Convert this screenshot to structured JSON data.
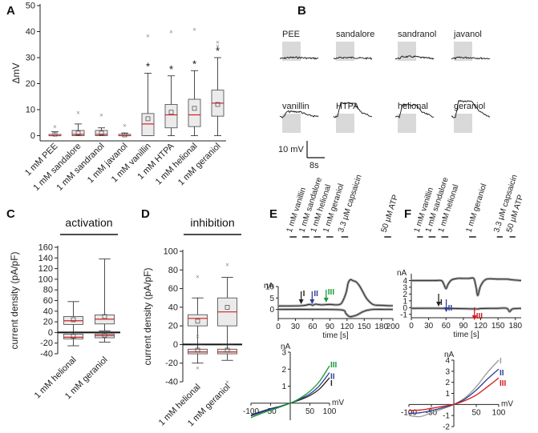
{
  "panel_letters": [
    "A",
    "B",
    "C",
    "D",
    "E",
    "F"
  ],
  "chart_data": [
    {
      "panel": "A",
      "type": "box",
      "ylabel": "ΔmV",
      "ylim": [
        -2,
        50
      ],
      "yticks": [
        0,
        10,
        20,
        30,
        40,
        50
      ],
      "categories": [
        "1 mM PEE",
        "1 mM sandalore",
        "1 mM sandranol",
        "1 mM javanol",
        "1 mM vanillin",
        "1 mM HTPA",
        "1 mM helional",
        "1 mM geraniol"
      ],
      "boxes": [
        {
          "min": 0,
          "q1": 0,
          "median": 0,
          "q3": 0.5,
          "max": 1.5,
          "mean": 0.6,
          "outliers": [
            3.5
          ],
          "sig": ""
        },
        {
          "min": 0,
          "q1": 0,
          "median": 0.5,
          "q3": 2,
          "max": 4.5,
          "mean": 1,
          "outliers": [
            9
          ],
          "sig": ""
        },
        {
          "min": 0,
          "q1": 0,
          "median": 0.5,
          "q3": 2,
          "max": 3,
          "mean": 1,
          "outliers": [
            8
          ],
          "sig": ""
        },
        {
          "min": 0,
          "q1": 0,
          "median": 0,
          "q3": 0.5,
          "max": 1,
          "mean": 0.3,
          "outliers": [
            4
          ],
          "sig": ""
        },
        {
          "min": 0,
          "q1": 0,
          "median": 4.5,
          "q3": 8.5,
          "max": 24,
          "mean": 6.5,
          "outliers": [
            38.5
          ],
          "sig": "*"
        },
        {
          "min": 0,
          "q1": 3,
          "median": 8,
          "q3": 12,
          "max": 23,
          "mean": 9,
          "outliers": [
            40
          ],
          "sig": "*"
        },
        {
          "min": 0,
          "q1": 3.5,
          "median": 8,
          "q3": 14,
          "max": 25,
          "mean": 10.5,
          "outliers": [
            41
          ],
          "sig": "*"
        },
        {
          "min": 0,
          "q1": 7.5,
          "median": 12.5,
          "q3": 17.5,
          "max": 30,
          "mean": 12,
          "outliers": [
            34.5,
            36
          ],
          "sig": "*"
        }
      ]
    },
    {
      "panel": "B",
      "type": "traces",
      "labels": [
        "PEE",
        "sandalore",
        "sandranol",
        "javanol",
        "vanillin",
        "HTPA",
        "helional",
        "geraniol"
      ],
      "response_mV": [
        0.5,
        0.5,
        1,
        0.5,
        3,
        8,
        7,
        9
      ],
      "scalebar_y": "10 mV",
      "scalebar_x": "8s"
    },
    {
      "panel": "C",
      "type": "box",
      "title": "activation",
      "ylabel": "current density (pA/pF)",
      "ylim": [
        -40,
        160
      ],
      "yticks": [
        -40,
        -20,
        0,
        20,
        40,
        60,
        80,
        100,
        120,
        140,
        160
      ],
      "categories": [
        "1 mM helional",
        "1 mM geraniol"
      ],
      "boxes": [
        {
          "min": 0,
          "q1": 15,
          "median": 22,
          "q3": 30,
          "max": 58,
          "mean": 24,
          "outliers": []
        },
        {
          "min": 3,
          "q1": 16,
          "median": 25,
          "q3": 33,
          "max": 138,
          "mean": 30,
          "outliers": []
        }
      ],
      "boxes_negative": [
        {
          "min": -25,
          "q1": -12,
          "median": -9,
          "q3": -3,
          "max": 0,
          "mean": -7
        },
        {
          "min": -18,
          "q1": -10,
          "median": -6,
          "q3": -3,
          "max": 0,
          "mean": -5
        }
      ]
    },
    {
      "panel": "D",
      "type": "box",
      "title": "inhibition",
      "ylabel": "current density (pA/pF)",
      "ylim": [
        -40,
        100
      ],
      "yticks": [
        -40,
        -20,
        0,
        20,
        40,
        60,
        80,
        100
      ],
      "categories": [
        "1 mM helional",
        "1 mM geraniol"
      ],
      "boxes": [
        {
          "min": 0,
          "q1": 20,
          "median": 28,
          "q3": 32,
          "max": 50,
          "mean": 25,
          "outliers": [
            73,
            9
          ]
        },
        {
          "min": 0,
          "q1": 20,
          "median": 35,
          "q3": 50,
          "max": 72,
          "mean": 40,
          "outliers": [
            86
          ]
        }
      ],
      "boxes_negative": [
        {
          "min": -20,
          "q1": -10,
          "median": -8,
          "q3": -5,
          "max": 0,
          "mean": -6,
          "outliers": [
            -25
          ]
        },
        {
          "min": -17,
          "q1": -10,
          "median": -8,
          "q3": -5,
          "max": 0,
          "mean": -6,
          "outliers": [
            -40
          ]
        }
      ]
    },
    {
      "panel": "E",
      "type": "line",
      "ylabel": "nA",
      "xlabel": "time [s]",
      "xlim": [
        0,
        200
      ],
      "ylim": [
        -4,
        10
      ],
      "yticks": [
        0,
        5,
        10
      ],
      "xticks": [
        0,
        30,
        60,
        90,
        120,
        150,
        180,
        200
      ],
      "xtick_labels": [
        "0",
        "30",
        "60",
        "90",
        "120",
        "150",
        "180",
        "200"
      ],
      "stimuli": [
        {
          "label": "1 mM vanillin",
          "start": 20,
          "end": 32
        },
        {
          "label": "1 mM sandalore",
          "start": 42,
          "end": 54
        },
        {
          "label": "1 mM helional",
          "start": 62,
          "end": 74
        },
        {
          "label": "1 mM geraniol",
          "start": 84,
          "end": 96
        },
        {
          "label": "3.3 μM capsaicin",
          "start": 110,
          "end": 122
        },
        {
          "label": "50 μM ATP",
          "start": 185,
          "end": 197
        }
      ],
      "arrows": [
        {
          "label": "I",
          "x": 54,
          "color": "#232323"
        },
        {
          "label": "II",
          "x": 62,
          "color": "#2f3f99"
        },
        {
          "label": "III",
          "x": 92,
          "color": "#1a9a3a"
        }
      ],
      "upper_trace": {
        "x": [
          0,
          40,
          55,
          60,
          65,
          75,
          90,
          100,
          110,
          118,
          122,
          126,
          130,
          136,
          142,
          148,
          155,
          165,
          175,
          185,
          195,
          200
        ],
        "y": [
          1.5,
          1.6,
          2.2,
          1.8,
          2.3,
          2,
          2.2,
          2,
          2.6,
          7,
          11.5,
          13,
          12.6,
          12,
          10.2,
          7.5,
          4.5,
          2.2,
          1.8,
          1.7,
          1.6,
          1.6
        ]
      },
      "lower_trace": {
        "x": [
          0,
          60,
          110,
          118,
          122,
          126,
          130,
          136,
          142,
          148,
          155,
          165,
          185,
          200
        ],
        "y": [
          0,
          0,
          -0.2,
          -1.8,
          -2.8,
          -3.2,
          -3,
          -2.6,
          -1.8,
          -1,
          -0.4,
          0,
          0,
          0
        ]
      }
    },
    {
      "panel": "E-IV",
      "type": "line",
      "xlabel": "mV",
      "ylabel": "nA",
      "xlim": [
        -100,
        100
      ],
      "ylim": [
        -1,
        3
      ],
      "xticks": [
        -100,
        -50,
        50,
        100
      ],
      "yticks": [
        1,
        2,
        3
      ],
      "series": [
        {
          "name": "I",
          "color": "#232323",
          "x": [
            -100,
            -75,
            -50,
            -25,
            0,
            25,
            50,
            75,
            100
          ],
          "y": [
            -0.7,
            -0.5,
            -0.32,
            -0.18,
            0,
            0.2,
            0.45,
            0.85,
            1.5
          ]
        },
        {
          "name": "II",
          "color": "#2f3f99",
          "x": [
            -100,
            -75,
            -50,
            -25,
            0,
            25,
            50,
            75,
            100
          ],
          "y": [
            -0.75,
            -0.55,
            -0.35,
            -0.2,
            0,
            0.25,
            0.55,
            1.05,
            1.8
          ]
        },
        {
          "name": "III",
          "color": "#1a9a3a",
          "x": [
            -100,
            -75,
            -50,
            -25,
            0,
            25,
            50,
            75,
            100
          ],
          "y": [
            -0.85,
            -0.62,
            -0.42,
            -0.22,
            0,
            0.3,
            0.7,
            1.3,
            2.2
          ]
        }
      ]
    },
    {
      "panel": "F",
      "type": "line",
      "ylabel": "nA",
      "xlabel": "time [s]",
      "xlim": [
        0,
        190
      ],
      "ylim": [
        -1.5,
        5
      ],
      "yticks": [
        -1,
        0,
        1,
        2,
        3,
        4
      ],
      "xticks": [
        0,
        30,
        60,
        90,
        120,
        150,
        180
      ],
      "xtick_labels": [
        "0",
        "30",
        "60",
        "90",
        "120",
        "150",
        "180"
      ],
      "stimuli": [
        {
          "label": "1 mM vanillin",
          "start": 10,
          "end": 20
        },
        {
          "label": "1 mM sandalore",
          "start": 30,
          "end": 42
        },
        {
          "label": "1 mM helional",
          "start": 52,
          "end": 64
        },
        {
          "label": "1 mM geraniol",
          "start": 100,
          "end": 112
        },
        {
          "label": "3.3 μM capsaicin",
          "start": 148,
          "end": 158
        },
        {
          "label": "50 μM ATP",
          "start": 170,
          "end": 180
        }
      ],
      "arrows": [
        {
          "label": "I",
          "x": 50,
          "color": "#232323"
        },
        {
          "label": "II",
          "x": 66,
          "color": "#2f3f99"
        },
        {
          "label": "III",
          "x": 112,
          "color": "#d4191c"
        }
      ],
      "upper_trace": {
        "x": [
          0,
          20,
          40,
          52,
          56,
          60,
          64,
          70,
          80,
          90,
          100,
          108,
          112,
          115,
          120,
          130,
          150,
          165,
          175,
          190
        ],
        "y": [
          4,
          4,
          4,
          4,
          3.5,
          2.8,
          3.5,
          4.1,
          4.3,
          4.3,
          4.3,
          4.3,
          3,
          1.8,
          3.2,
          4.2,
          4.2,
          4.2,
          4.1,
          4
        ]
      },
      "lower_trace": {
        "x": [
          0,
          60,
          112,
          118,
          130,
          150,
          165,
          170,
          175,
          190
        ],
        "y": [
          -0.1,
          -0.1,
          -0.2,
          -0.15,
          -0.12,
          -0.1,
          -0.1,
          -0.6,
          -0.2,
          -0.1
        ]
      }
    },
    {
      "panel": "F-IV",
      "type": "line",
      "xlabel": "mV",
      "ylabel": "nA",
      "xlim": [
        -100,
        100
      ],
      "ylim": [
        -2,
        4
      ],
      "xticks": [
        -100,
        -50,
        50,
        100
      ],
      "yticks": [
        -2,
        -1,
        1,
        2,
        3,
        4
      ],
      "series": [
        {
          "name": "I",
          "color": "#9a9a9a",
          "x": [
            -100,
            -75,
            -50,
            -25,
            0,
            25,
            50,
            75,
            100
          ],
          "y": [
            -1,
            -1.1,
            -0.75,
            -0.4,
            0,
            0.6,
            1.6,
            2.9,
            4
          ]
        },
        {
          "name": "II",
          "color": "#2f3f99",
          "x": [
            -100,
            -75,
            -50,
            -25,
            0,
            25,
            50,
            75,
            100
          ],
          "y": [
            -0.8,
            -0.75,
            -0.55,
            -0.3,
            0,
            0.5,
            1.3,
            2.3,
            3.2
          ]
        },
        {
          "name": "III",
          "color": "#d4191c",
          "x": [
            -100,
            -75,
            -50,
            -25,
            0,
            25,
            50,
            75,
            100
          ],
          "y": [
            -0.55,
            -0.5,
            -0.35,
            -0.18,
            0,
            0.35,
            0.85,
            1.6,
            2.4
          ]
        }
      ]
    }
  ]
}
